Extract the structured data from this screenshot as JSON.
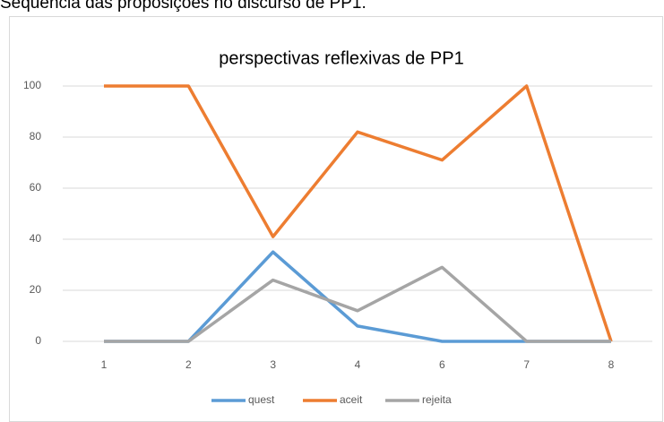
{
  "caption": "Sequência das proposições no discurso de PP1.",
  "chart_data": {
    "type": "line",
    "title": "perspectivas reflexivas de PP1",
    "categories": [
      "1",
      "2",
      "3",
      "4",
      "6",
      "7",
      "8"
    ],
    "series": [
      {
        "name": "quest",
        "color": "#5b9bd5",
        "values": [
          0,
          0,
          35,
          6,
          0,
          0,
          0
        ]
      },
      {
        "name": "aceit",
        "color": "#ed7d31",
        "values": [
          100,
          100,
          41,
          82,
          71,
          100,
          0
        ]
      },
      {
        "name": "rejeita",
        "color": "#a5a5a5",
        "values": [
          0,
          0,
          24,
          12,
          29,
          0,
          0
        ]
      }
    ],
    "ylim": [
      0,
      100
    ],
    "yticks": [
      0,
      20,
      40,
      60,
      80,
      100
    ],
    "grid": true,
    "legend": "bottom"
  }
}
